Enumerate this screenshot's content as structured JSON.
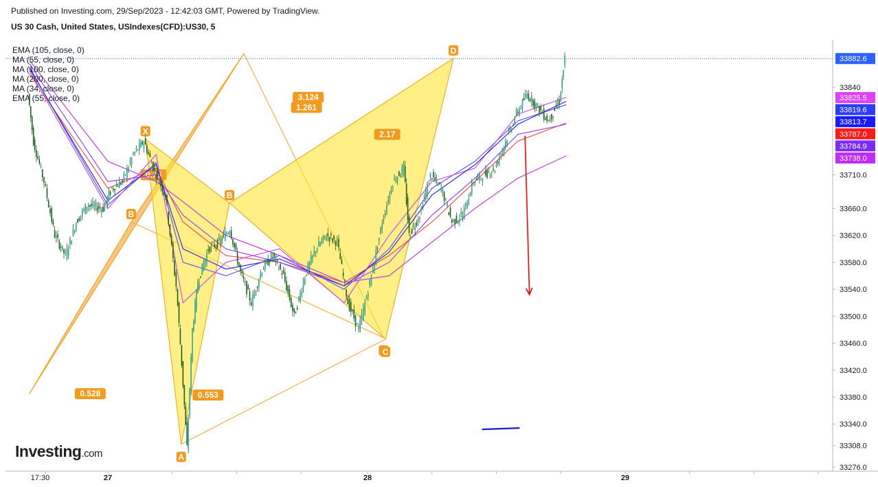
{
  "header": {
    "published": "Published on Investing.com, 29/Sep/2023 - 12:42:03 GMT, Powered by TradingView.",
    "symbol": "US 30 Cash, United States, USIndexes(CFD):US30, 5"
  },
  "legend": [
    "EMA (105, close, 0)",
    "MA (55, close, 0)",
    "MA (100, close, 0)",
    "MA (200, close, 0)",
    "MA (34, close, 0)",
    "EMA (55, close, 0)"
  ],
  "logo": {
    "main": "Investing",
    "suffix": ".com"
  },
  "chart_data": {
    "type": "line",
    "title": "",
    "y_ticks": [
      33840,
      33710,
      33660,
      33620,
      33580,
      33540,
      33500,
      33460,
      33420,
      33380,
      33340,
      33308,
      33276
    ],
    "y_tick_labels": [
      "33840",
      "33710.0",
      "33660.0",
      "33620.0",
      "33580.0",
      "33540.0",
      "33500.0",
      "33460.0",
      "33420.0",
      "33380.0",
      "33340.0",
      "33308.0",
      "33276.0"
    ],
    "ylim": [
      33276,
      33882.6
    ],
    "x_labels": [
      "17:30",
      "27",
      "28",
      "29"
    ],
    "x_label_times": [
      "26 17:30",
      "27",
      "28",
      "29"
    ],
    "last_price": {
      "value": 33882.6,
      "label": "33882.6",
      "color": "#2962ff"
    },
    "price_tags": [
      {
        "value": 33825.5,
        "label": "33825.5",
        "color": "#e040fb"
      },
      {
        "value": 33819.6,
        "label": "33819.6",
        "color": "#2b3bff"
      },
      {
        "value": 33813.7,
        "label": "33813.7",
        "color": "#1a1aff"
      },
      {
        "value": 33787.0,
        "label": "33787.0",
        "color": "#ff1a1a"
      },
      {
        "value": 33784.9,
        "label": "33784.9",
        "color": "#7b2bff"
      },
      {
        "value": 33738.0,
        "label": "33738.0",
        "color": "#c02bff"
      }
    ],
    "patterns": [
      {
        "name": "harmonic-pattern-orange",
        "color": "#f7a440",
        "points": [
          {
            "label": "",
            "time": "26 16:30",
            "price": 33385
          },
          {
            "label": "B",
            "time": "27 02:10",
            "price": 33640
          },
          {
            "label": "",
            "time": "27 12:40",
            "price": 33890
          },
          {
            "label": "C",
            "time": "28 01:30",
            "price": 33468
          }
        ],
        "ratios": [
          {
            "label": "3.124",
            "time": "27 18:40",
            "price": 33825
          },
          {
            "label": "0.528",
            "time": "26 22:10",
            "price": 33385
          }
        ]
      },
      {
        "name": "harmonic-pattern-yellow",
        "color": "#ffe433",
        "points": [
          {
            "label": "X",
            "time": "27 03:30",
            "price": 33763
          },
          {
            "label": "A",
            "time": "27 06:50",
            "price": 33310
          },
          {
            "label": "B",
            "time": "27 11:20",
            "price": 33668
          },
          {
            "label": "C",
            "time": "28 01:40",
            "price": 33466
          },
          {
            "label": "D",
            "time": "28 08:00",
            "price": 33883
          }
        ],
        "ratios": [
          {
            "label": "1.261",
            "time": "27 18:30",
            "price": 33810
          },
          {
            "label": "0.75",
            "time": "27 04:15",
            "price": 33710
          },
          {
            "label": "2.17",
            "time": "28 01:50",
            "price": 33770
          },
          {
            "label": "0.553",
            "time": "27 09:20",
            "price": 33383
          }
        ]
      }
    ],
    "arrow": {
      "color": "#ff0000",
      "from": {
        "time": "28 14:40",
        "price": 33768
      },
      "to": {
        "time": "28 15:05",
        "price": 33532
      }
    },
    "support_line": {
      "color": "#1a1acc",
      "from": {
        "time": "28 10:40",
        "price": 33332
      },
      "to": {
        "time": "28 14:10",
        "price": 33334
      }
    },
    "price_path": [
      [
        "26 16:30",
        33830
      ],
      [
        "26 17:00",
        33760
      ],
      [
        "26 18:00",
        33700
      ],
      [
        "26 19:00",
        33620
      ],
      [
        "26 20:00",
        33590
      ],
      [
        "26 21:00",
        33640
      ],
      [
        "26 22:00",
        33665
      ],
      [
        "26 23:30",
        33660
      ],
      [
        "27 00:30",
        33690
      ],
      [
        "27 01:30",
        33700
      ],
      [
        "27 02:30",
        33740
      ],
      [
        "27 03:30",
        33760
      ],
      [
        "27 04:30",
        33715
      ],
      [
        "27 05:30",
        33680
      ],
      [
        "27 06:30",
        33545
      ],
      [
        "27 07:00",
        33430
      ],
      [
        "27 07:30",
        33305
      ],
      [
        "27 08:00",
        33480
      ],
      [
        "27 08:30",
        33550
      ],
      [
        "27 09:30",
        33600
      ],
      [
        "27 10:30",
        33610
      ],
      [
        "27 11:30",
        33630
      ],
      [
        "27 12:30",
        33565
      ],
      [
        "27 13:30",
        33520
      ],
      [
        "27 14:30",
        33570
      ],
      [
        "27 15:30",
        33590
      ],
      [
        "27 16:30",
        33560
      ],
      [
        "27 17:30",
        33500
      ],
      [
        "27 18:30",
        33560
      ],
      [
        "27 19:30",
        33600
      ],
      [
        "27 20:30",
        33620
      ],
      [
        "27 21:30",
        33610
      ],
      [
        "27 22:30",
        33520
      ],
      [
        "27 23:30",
        33480
      ],
      [
        "28 00:30",
        33560
      ],
      [
        "28 01:30",
        33640
      ],
      [
        "28 02:30",
        33700
      ],
      [
        "28 03:30",
        33720
      ],
      [
        "28 04:00",
        33620
      ],
      [
        "28 05:00",
        33650
      ],
      [
        "28 06:00",
        33710
      ],
      [
        "28 07:00",
        33690
      ],
      [
        "28 08:00",
        33640
      ],
      [
        "28 09:00",
        33650
      ],
      [
        "28 10:00",
        33700
      ],
      [
        "28 11:00",
        33710
      ],
      [
        "28 12:00",
        33720
      ],
      [
        "28 13:00",
        33760
      ],
      [
        "28 14:00",
        33800
      ],
      [
        "28 15:00",
        33830
      ],
      [
        "28 16:00",
        33810
      ],
      [
        "28 17:00",
        33790
      ],
      [
        "28 18:00",
        33820
      ],
      [
        "28 18:30",
        33882
      ]
    ],
    "ma_lines": [
      {
        "name": "EMA (105, close, 0)",
        "color": "#ff5050",
        "points": [
          [
            "26 16:30",
            33860
          ],
          [
            "27 00:00",
            33690
          ],
          [
            "27 04:30",
            33720
          ],
          [
            "27 07:00",
            33640
          ],
          [
            "27 11:00",
            33590
          ],
          [
            "27 16:00",
            33580
          ],
          [
            "27 22:00",
            33550
          ],
          [
            "28 02:00",
            33590
          ],
          [
            "28 06:00",
            33640
          ],
          [
            "28 10:00",
            33700
          ],
          [
            "28 14:00",
            33760
          ],
          [
            "28 18:30",
            33787
          ]
        ]
      },
      {
        "name": "MA (55, close, 0)",
        "color": "#5a5aff",
        "points": [
          [
            "26 16:30",
            33870
          ],
          [
            "27 00:00",
            33665
          ],
          [
            "27 04:30",
            33728
          ],
          [
            "27 07:00",
            33580
          ],
          [
            "27 11:00",
            33560
          ],
          [
            "27 16:00",
            33590
          ],
          [
            "27 22:00",
            33540
          ],
          [
            "28 02:00",
            33600
          ],
          [
            "28 06:00",
            33690
          ],
          [
            "28 10:00",
            33730
          ],
          [
            "28 14:00",
            33790
          ],
          [
            "28 18:30",
            33814
          ]
        ]
      },
      {
        "name": "MA (100, close, 0)",
        "color": "#8a4dff",
        "points": [
          [
            "26 16:30",
            33875
          ],
          [
            "27 00:00",
            33700
          ],
          [
            "27 04:30",
            33710
          ],
          [
            "27 07:00",
            33650
          ],
          [
            "27 11:00",
            33600
          ],
          [
            "27 16:00",
            33580
          ],
          [
            "27 22:00",
            33545
          ],
          [
            "28 02:00",
            33580
          ],
          [
            "28 06:00",
            33650
          ],
          [
            "28 10:00",
            33705
          ],
          [
            "28 14:00",
            33770
          ],
          [
            "28 18:30",
            33785
          ]
        ]
      },
      {
        "name": "MA (200, close, 0)",
        "color": "#c040e0",
        "points": [
          [
            "26 16:30",
            33880
          ],
          [
            "27 00:00",
            33730
          ],
          [
            "27 04:30",
            33700
          ],
          [
            "27 07:00",
            33670
          ],
          [
            "27 11:00",
            33620
          ],
          [
            "27 16:00",
            33590
          ],
          [
            "27 22:00",
            33550
          ],
          [
            "28 02:00",
            33560
          ],
          [
            "28 06:00",
            33610
          ],
          [
            "28 10:00",
            33660
          ],
          [
            "28 14:00",
            33705
          ],
          [
            "28 18:30",
            33738
          ]
        ]
      },
      {
        "name": "MA (34, close, 0)",
        "color": "#d050f0",
        "points": [
          [
            "26 16:30",
            33865
          ],
          [
            "27 00:00",
            33660
          ],
          [
            "27 04:30",
            33740
          ],
          [
            "27 07:00",
            33520
          ],
          [
            "27 11:00",
            33580
          ],
          [
            "27 16:00",
            33600
          ],
          [
            "27 22:00",
            33520
          ],
          [
            "28 02:00",
            33620
          ],
          [
            "28 06:00",
            33700
          ],
          [
            "28 10:00",
            33720
          ],
          [
            "28 14:00",
            33800
          ],
          [
            "28 18:30",
            33825
          ]
        ]
      },
      {
        "name": "EMA (55, close, 0)",
        "color": "#3030dd",
        "points": [
          [
            "26 16:30",
            33868
          ],
          [
            "27 00:00",
            33672
          ],
          [
            "27 04:30",
            33725
          ],
          [
            "27 07:00",
            33600
          ],
          [
            "27 11:00",
            33570
          ],
          [
            "27 16:00",
            33585
          ],
          [
            "27 22:00",
            33545
          ],
          [
            "28 02:00",
            33595
          ],
          [
            "28 06:00",
            33680
          ],
          [
            "28 10:00",
            33725
          ],
          [
            "28 14:00",
            33785
          ],
          [
            "28 18:30",
            33819
          ]
        ]
      }
    ]
  }
}
